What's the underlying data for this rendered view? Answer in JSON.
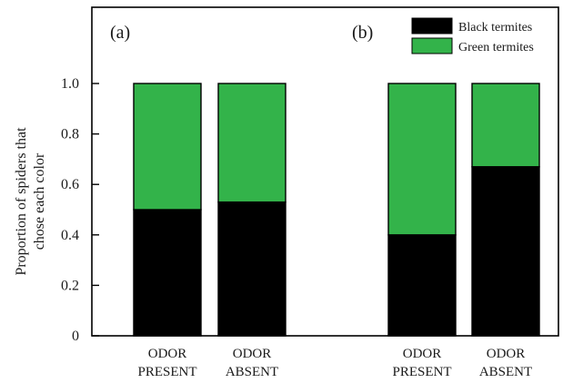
{
  "chart_data": {
    "type": "bar",
    "stacked": true,
    "ylabel_lines": [
      "Proportion of spiders that",
      "chose each color"
    ],
    "ylim": [
      0,
      1.0
    ],
    "yticks": [
      0,
      0.2,
      0.4,
      0.6,
      0.8,
      1.0
    ],
    "ytick_labels": [
      "0",
      "0.2",
      "0.4",
      "0.6",
      "0.8",
      "1.0"
    ],
    "grid": false,
    "legend_position": "top-right",
    "panels": [
      {
        "label": "(a)",
        "categories": [
          {
            "line1": "ODOR",
            "line2": "PRESENT"
          },
          {
            "line1": "ODOR",
            "line2": "ABSENT"
          }
        ],
        "series": [
          {
            "name": "Black termites",
            "values": [
              0.5,
              0.53
            ]
          },
          {
            "name": "Green termites",
            "values": [
              0.5,
              0.47
            ]
          }
        ]
      },
      {
        "label": "(b)",
        "categories": [
          {
            "line1": "ODOR",
            "line2": "PRESENT"
          },
          {
            "line1": "ODOR",
            "line2": "ABSENT"
          }
        ],
        "series": [
          {
            "name": "Black termites",
            "values": [
              0.4,
              0.67
            ]
          },
          {
            "name": "Green termites",
            "values": [
              0.6,
              0.33
            ]
          }
        ]
      }
    ],
    "legend": [
      {
        "name": "Black termites",
        "color": "#000000"
      },
      {
        "name": "Green termites",
        "color": "#33b34a"
      }
    ]
  }
}
